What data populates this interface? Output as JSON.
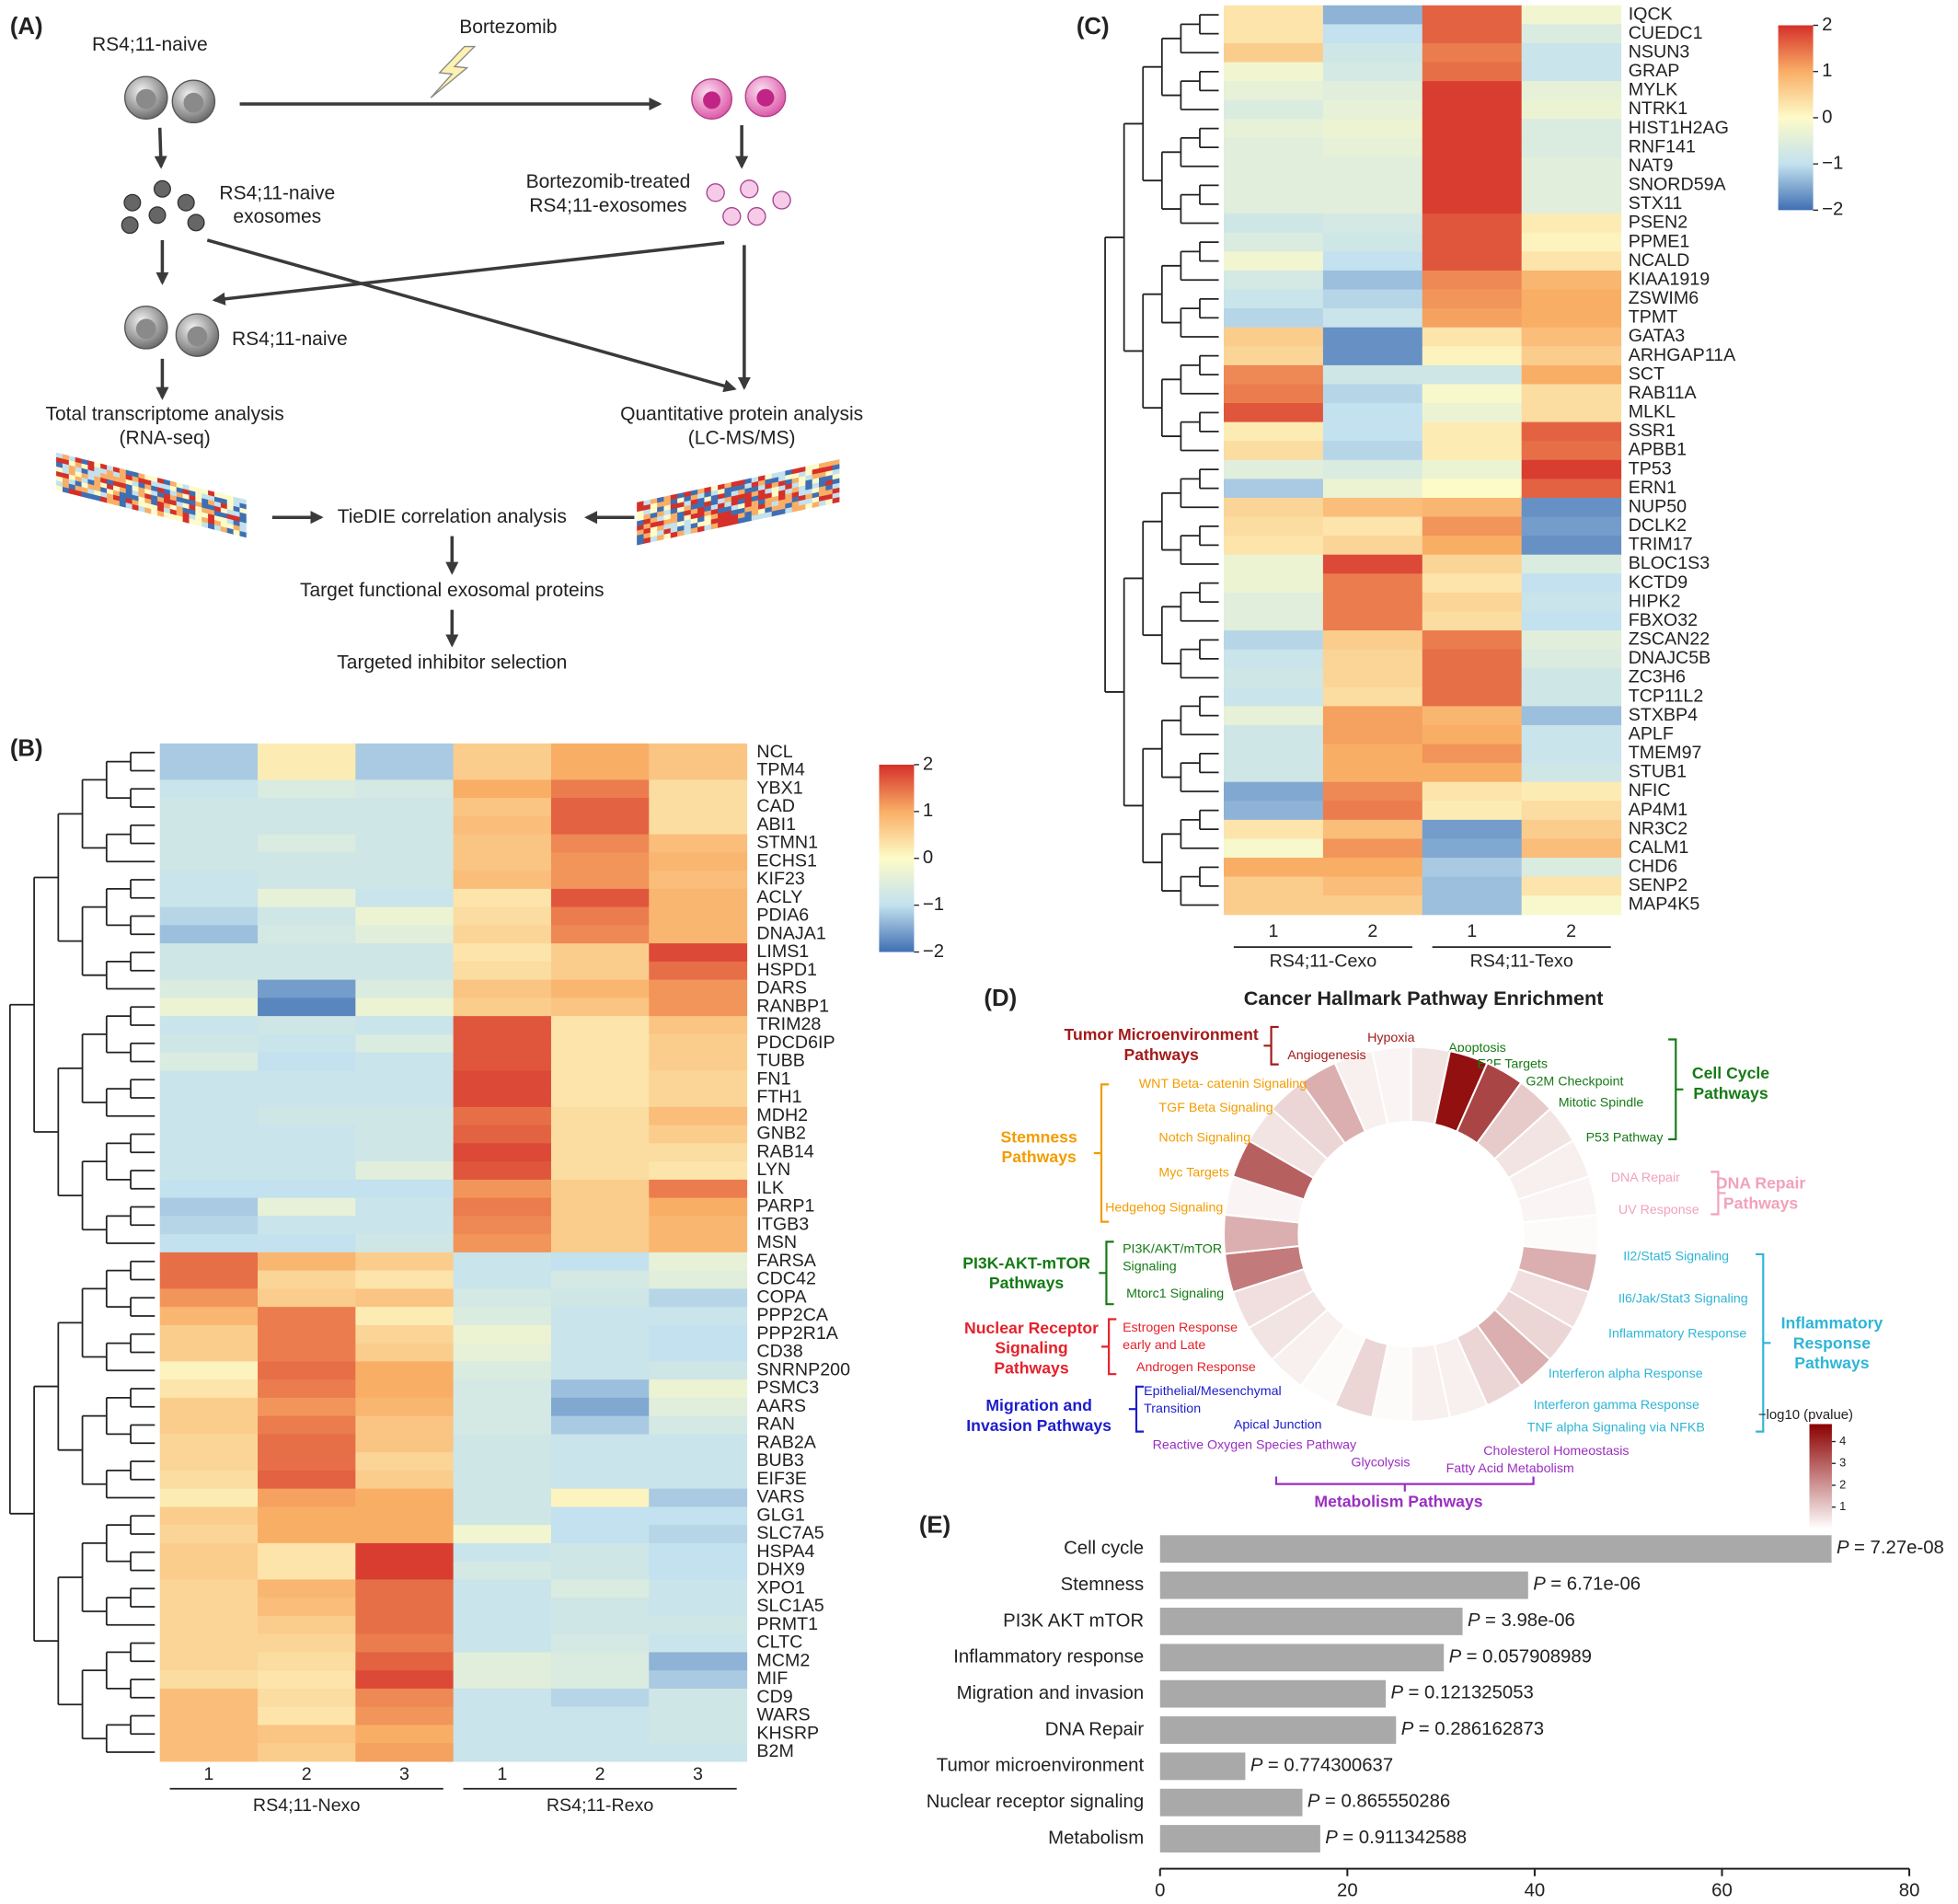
{
  "diagram": {
    "label": "(A)",
    "cells_top": "RS4;11-naive",
    "drug": "Bortezomib",
    "naive_exosomes": [
      "RS4;11-naive",
      "exosomes"
    ],
    "treated_exosomes": [
      "Bortezomib-treated",
      "RS4;11-exosomes"
    ],
    "cells_bottom": "RS4;11-naive",
    "rna": [
      "Total transcriptome analysis",
      "(RNA-seq)"
    ],
    "protein": [
      "Quantitative protein analysis",
      "(LC-MS/MS)"
    ],
    "tiedie": "TieDIE correlation analysis",
    "target": "Target functional exosomal proteins",
    "inhibitor": "Targeted inhibitor selection"
  },
  "chart_data": [
    {
      "type": "heatmap",
      "label": "(B)",
      "rows": [
        "NCL",
        "TPM4",
        "YBX1",
        "CAD",
        "ABI1",
        "STMN1",
        "ECHS1",
        "KIF23",
        "ACLY",
        "PDIA6",
        "DNAJA1",
        "LIMS1",
        "HSPD1",
        "DARS",
        "RANBP1",
        "TRIM28",
        "PDCD6IP",
        "TUBB",
        "FN1",
        "FTH1",
        "MDH2",
        "GNB2",
        "RAB14",
        "LYN",
        "ILK",
        "PARP1",
        "ITGB3",
        "MSN",
        "FARSA",
        "CDC42",
        "COPA",
        "PPP2CA",
        "PPP2R1A",
        "CD38",
        "SNRNP200",
        "PSMC3",
        "AARS",
        "RAN",
        "RAB2A",
        "BUB3",
        "EIF3E",
        "VARS",
        "GLG1",
        "SLC7A5",
        "HSPA4",
        "DHX9",
        "XPO1",
        "SLC1A5",
        "PRMT1",
        "CLTC",
        "MCM2",
        "MIF",
        "CD9",
        "WARS",
        "KHSRP",
        "B2M"
      ],
      "groups": [
        {
          "name": "RS4;11-Nexo",
          "columns": [
            "1",
            "2",
            "3"
          ]
        },
        {
          "name": "RS4;11-Rexo",
          "columns": [
            "1",
            "2",
            "3"
          ]
        }
      ],
      "values": [
        [
          -1.2,
          0.2,
          -1.2,
          0.6,
          1.0,
          0.7
        ],
        [
          -1.2,
          0.2,
          -1.2,
          0.6,
          1.0,
          0.7
        ],
        [
          -0.9,
          -0.6,
          -0.7,
          1.0,
          1.4,
          0.4
        ],
        [
          -0.8,
          -0.8,
          -0.8,
          0.7,
          1.6,
          0.4
        ],
        [
          -0.8,
          -0.8,
          -0.8,
          0.8,
          1.6,
          0.4
        ],
        [
          -0.8,
          -0.6,
          -0.8,
          0.7,
          1.3,
          0.8
        ],
        [
          -0.8,
          -0.8,
          -0.8,
          0.7,
          1.2,
          0.9
        ],
        [
          -0.9,
          -0.8,
          -0.8,
          0.8,
          1.2,
          0.8
        ],
        [
          -0.9,
          -0.4,
          -0.9,
          0.3,
          1.7,
          0.9
        ],
        [
          -1.1,
          -0.8,
          -0.3,
          0.4,
          1.4,
          0.9
        ],
        [
          -1.3,
          -0.7,
          -0.5,
          0.5,
          1.3,
          0.9
        ],
        [
          -0.8,
          -0.8,
          -0.8,
          0.3,
          0.6,
          1.8
        ],
        [
          -0.8,
          -0.8,
          -0.8,
          0.4,
          0.6,
          1.5
        ],
        [
          -0.6,
          -1.6,
          -0.6,
          0.7,
          0.9,
          1.2
        ],
        [
          -0.3,
          -1.8,
          -0.3,
          0.6,
          0.7,
          1.2
        ],
        [
          -0.9,
          -0.8,
          -0.9,
          1.7,
          0.3,
          0.7
        ],
        [
          -0.8,
          -0.9,
          -0.6,
          1.7,
          0.3,
          0.6
        ],
        [
          -0.6,
          -1.0,
          -0.9,
          1.7,
          0.3,
          0.6
        ],
        [
          -0.9,
          -0.9,
          -0.9,
          1.8,
          0.3,
          0.5
        ],
        [
          -0.9,
          -0.9,
          -0.9,
          1.8,
          0.3,
          0.5
        ],
        [
          -0.9,
          -0.8,
          -0.8,
          1.5,
          0.4,
          0.8
        ],
        [
          -0.9,
          -0.9,
          -0.8,
          1.6,
          0.4,
          0.6
        ],
        [
          -0.9,
          -0.9,
          -0.8,
          1.8,
          0.4,
          0.4
        ],
        [
          -0.9,
          -0.9,
          -0.5,
          1.7,
          0.4,
          0.3
        ],
        [
          -1.0,
          -1.0,
          -1.0,
          1.2,
          0.6,
          1.4
        ],
        [
          -1.2,
          -0.4,
          -0.9,
          1.4,
          0.6,
          1.0
        ],
        [
          -1.1,
          -0.9,
          -0.9,
          1.3,
          0.6,
          0.9
        ],
        [
          -1.0,
          -1.0,
          -0.8,
          1.2,
          0.6,
          0.9
        ],
        [
          1.5,
          0.9,
          0.6,
          -0.9,
          -1.0,
          -0.4
        ],
        [
          1.5,
          0.5,
          0.3,
          -0.9,
          -0.7,
          -0.5
        ],
        [
          1.2,
          0.6,
          0.7,
          -0.7,
          -0.8,
          -1.1
        ],
        [
          0.9,
          1.4,
          0.2,
          -0.6,
          -0.9,
          -0.9
        ],
        [
          0.6,
          1.4,
          0.5,
          -0.3,
          -0.9,
          -1.0
        ],
        [
          0.6,
          1.4,
          0.6,
          -0.4,
          -0.9,
          -1.0
        ],
        [
          0.1,
          1.5,
          1.0,
          -0.6,
          -0.9,
          -0.8
        ],
        [
          0.3,
          1.4,
          1.0,
          -0.7,
          -1.3,
          -0.3
        ],
        [
          0.6,
          1.2,
          0.9,
          -0.7,
          -1.5,
          -0.5
        ],
        [
          0.6,
          1.4,
          0.7,
          -0.7,
          -1.2,
          -0.7
        ],
        [
          0.5,
          1.5,
          0.7,
          -0.8,
          -0.9,
          -0.9
        ],
        [
          0.5,
          1.5,
          0.5,
          -0.8,
          -0.9,
          -0.9
        ],
        [
          0.4,
          1.6,
          0.6,
          -0.8,
          -0.9,
          -0.9
        ],
        [
          0.2,
          1.1,
          1.0,
          -0.8,
          0.1,
          -1.2
        ],
        [
          0.6,
          1.0,
          1.0,
          -0.8,
          -1.0,
          -1.0
        ],
        [
          0.5,
          1.0,
          1.0,
          -0.2,
          -1.0,
          -1.1
        ],
        [
          0.6,
          0.3,
          1.9,
          -0.9,
          -0.8,
          -1.0
        ],
        [
          0.6,
          0.3,
          1.9,
          -0.7,
          -0.8,
          -1.0
        ],
        [
          0.5,
          0.9,
          1.5,
          -0.9,
          -0.6,
          -0.9
        ],
        [
          0.5,
          0.8,
          1.5,
          -0.9,
          -0.8,
          -0.9
        ],
        [
          0.5,
          0.6,
          1.5,
          -0.9,
          -0.8,
          -0.8
        ],
        [
          0.5,
          0.5,
          1.4,
          -0.9,
          -0.7,
          -0.9
        ],
        [
          0.5,
          0.4,
          1.6,
          -0.5,
          -0.6,
          -1.4
        ],
        [
          0.4,
          0.3,
          1.8,
          -0.5,
          -0.6,
          -1.2
        ],
        [
          0.8,
          0.4,
          1.3,
          -0.9,
          -1.1,
          -0.8
        ],
        [
          0.8,
          0.3,
          1.2,
          -0.9,
          -0.9,
          -0.8
        ],
        [
          0.8,
          0.7,
          1.0,
          -0.9,
          -0.9,
          -0.8
        ],
        [
          0.8,
          0.6,
          1.1,
          -0.9,
          -0.9,
          -0.9
        ]
      ],
      "zlim": [
        -2,
        2
      ],
      "colormap": [
        "#3f6fb3",
        "#c3e1ee",
        "#fdfbc8",
        "#f9ae66",
        "#d5302a"
      ],
      "colorbar_ticks": [
        2,
        1,
        0,
        {
          "value": -1,
          "label": "−1"
        },
        {
          "value": -2,
          "label": "−2"
        }
      ]
    },
    {
      "type": "heatmap",
      "label": "(C)",
      "rows": [
        "IQCK",
        "CUEDC1",
        "NSUN3",
        "GRAP",
        "MYLK",
        "NTRK1",
        "HIST1H2AG",
        "RNF141",
        "NAT9",
        "SNORD59A",
        "STX11",
        "PSEN2",
        "PPME1",
        "NCALD",
        "KIAA1919",
        "ZSWIM6",
        "TPMT",
        "GATA3",
        "ARHGAP11A",
        "SCT",
        "RAB11A",
        "MLKL",
        "SSR1",
        "APBB1",
        "TP53",
        "ERN1",
        "NUP50",
        "DCLK2",
        "TRIM17",
        "BLOC1S3",
        "KCTD9",
        "HIPK2",
        "FBXO32",
        "ZSCAN22",
        "DNAJC5B",
        "ZC3H6",
        "TCP11L2",
        "STXBP4",
        "APLF",
        "TMEM97",
        "STUB1",
        "NFIC",
        "AP4M1",
        "NR3C2",
        "CALM1",
        "CHD6",
        "SENP2",
        "MAP4K5"
      ],
      "groups": [
        {
          "name": "RS4;11-Cexo",
          "columns": [
            "1",
            "2"
          ]
        },
        {
          "name": "RS4;11-Texo",
          "columns": [
            "1",
            "2"
          ]
        }
      ],
      "values": [
        [
          0.3,
          -1.4,
          1.6,
          -0.2
        ],
        [
          0.3,
          -1.0,
          1.6,
          -0.6
        ],
        [
          0.6,
          -0.8,
          1.4,
          -0.9
        ],
        [
          -0.2,
          -0.7,
          1.5,
          -0.9
        ],
        [
          -0.4,
          -0.5,
          1.9,
          -0.4
        ],
        [
          -0.6,
          -0.4,
          1.9,
          -0.3
        ],
        [
          -0.4,
          -0.3,
          1.9,
          -0.6
        ],
        [
          -0.5,
          -0.4,
          1.9,
          -0.6
        ],
        [
          -0.5,
          -0.5,
          1.9,
          -0.5
        ],
        [
          -0.5,
          -0.5,
          1.9,
          -0.5
        ],
        [
          -0.5,
          -0.5,
          1.9,
          -0.5
        ],
        [
          -0.8,
          -0.7,
          1.7,
          0.2
        ],
        [
          -0.6,
          -0.8,
          1.7,
          0.1
        ],
        [
          -0.2,
          -1.0,
          1.7,
          0.3
        ],
        [
          -0.7,
          -1.3,
          1.3,
          0.9
        ],
        [
          -0.9,
          -1.1,
          1.2,
          1.0
        ],
        [
          -1.1,
          -0.9,
          1.1,
          1.0
        ],
        [
          0.6,
          -1.7,
          0.3,
          0.8
        ],
        [
          0.5,
          -1.7,
          0.1,
          0.6
        ],
        [
          1.3,
          -0.8,
          -0.8,
          1.0
        ],
        [
          1.4,
          -1.1,
          -0.1,
          0.4
        ],
        [
          1.7,
          -1.0,
          -0.3,
          0.4
        ],
        [
          0.2,
          -1.0,
          0.2,
          1.6
        ],
        [
          0.4,
          -1.1,
          0.2,
          1.5
        ],
        [
          -0.5,
          -0.6,
          -0.3,
          1.9
        ],
        [
          -1.2,
          -0.3,
          0.0,
          1.6
        ],
        [
          0.5,
          0.8,
          0.9,
          -1.7
        ],
        [
          0.4,
          0.3,
          1.2,
          -1.6
        ],
        [
          0.3,
          0.5,
          1.0,
          -1.7
        ],
        [
          -0.3,
          1.8,
          0.5,
          -0.6
        ],
        [
          -0.3,
          1.4,
          0.3,
          -1.0
        ],
        [
          -0.5,
          1.4,
          0.5,
          -0.9
        ],
        [
          -0.5,
          1.4,
          0.4,
          -1.0
        ],
        [
          -1.1,
          0.6,
          1.4,
          -0.5
        ],
        [
          -0.9,
          0.5,
          1.5,
          -0.6
        ],
        [
          -0.8,
          0.5,
          1.5,
          -0.8
        ],
        [
          -0.9,
          0.4,
          1.5,
          -0.8
        ],
        [
          -0.4,
          1.1,
          0.9,
          -1.3
        ],
        [
          -0.8,
          1.1,
          1.0,
          -0.9
        ],
        [
          -0.8,
          1.0,
          1.2,
          -0.9
        ],
        [
          -0.8,
          1.0,
          1.0,
          -0.8
        ],
        [
          -1.5,
          1.3,
          0.3,
          0.2
        ],
        [
          -1.4,
          1.4,
          0.2,
          0.4
        ],
        [
          0.3,
          0.8,
          -1.6,
          0.6
        ],
        [
          -0.1,
          1.2,
          -1.5,
          0.8
        ],
        [
          1.0,
          1.0,
          -1.2,
          -0.6
        ],
        [
          0.6,
          0.8,
          -1.3,
          0.3
        ],
        [
          0.6,
          0.6,
          -1.3,
          -0.1
        ]
      ],
      "zlim": [
        -2,
        2
      ],
      "colormap": [
        "#3f6fb3",
        "#c3e1ee",
        "#fdfbc8",
        "#f9ae66",
        "#d5302a"
      ],
      "colorbar_ticks": [
        2,
        1,
        0,
        {
          "value": -1,
          "label": "−1"
        },
        {
          "value": -2,
          "label": "−2"
        }
      ]
    },
    {
      "type": "radial_bar",
      "label": "(D)",
      "title": "Cancer Hallmark Pathway Enrichment",
      "series": [
        {
          "name": [
            "Cell Cycle",
            "Pathways"
          ],
          "color": "#167a16",
          "categories": [
            [
              "Apoptosis"
            ],
            [
              "E2F Targets"
            ],
            [
              "G2M Checkpoint"
            ],
            [
              "Mitotic Spindle"
            ],
            [
              "P53 Pathway"
            ]
          ],
          "values": [
            0.5,
            4.5,
            3.5,
            1.0,
            0.5
          ]
        },
        {
          "name": [
            "DNA Repair",
            "Pathways"
          ],
          "color": "#f2a2ba",
          "categories": [
            [
              "DNA Repair"
            ],
            [
              "UV Response"
            ]
          ],
          "values": [
            0.3,
            0.2
          ]
        },
        {
          "name": [
            "Inflammatory",
            "Response",
            "Pathways"
          ],
          "color": "#2fb5d6",
          "categories": [
            [
              "Il2/Stat5 Signaling"
            ],
            [
              "Il6/Jak/Stat3 Signaling"
            ],
            [
              "Inflammatory Response"
            ],
            [
              "Interferon alpha Response"
            ],
            [
              "Interferon gamma Response"
            ],
            [
              "TNF alpha Signaling via NFKB"
            ]
          ],
          "values": [
            0.1,
            1.5,
            0.6,
            0.8,
            1.5,
            0.8
          ]
        },
        {
          "name": [
            "Metabolism Pathways"
          ],
          "color": "#9a2fc0",
          "categories": [
            [
              "Cholesterol Homeostasis"
            ],
            [
              "Fatty Acid Metabolism"
            ],
            [
              "Glycolysis"
            ],
            [
              "Reactive Oxygen Species Pathway"
            ]
          ],
          "values": [
            0.3,
            0.3,
            0.1,
            0.8
          ]
        },
        {
          "name": [
            "Migration and",
            "Invasion Pathways"
          ],
          "color": "#1c1ccc",
          "categories": [
            [
              "Apical Junction"
            ],
            [
              "Epithelial/Mesenchymal",
              "Transition"
            ]
          ],
          "values": [
            0.1,
            0.3
          ]
        },
        {
          "name": [
            "Nuclear Receptor",
            "Signaling",
            "Pathways"
          ],
          "color": "#e6202a",
          "categories": [
            [
              "Androgen Response"
            ],
            [
              "Estrogen Response",
              "early and Late"
            ]
          ],
          "values": [
            0.5,
            0.6
          ]
        },
        {
          "name": [
            "PI3K-AKT-mTOR",
            "Pathways"
          ],
          "color": "#147a14",
          "categories": [
            [
              "Mtorc1 Signaling"
            ],
            [
              "PI3K/AKT/mTOR",
              "Signaling"
            ]
          ],
          "values": [
            2.5,
            1.5
          ]
        },
        {
          "name": [
            "Stemness",
            "Pathways"
          ],
          "color": "#f39c00",
          "categories": [
            [
              "Hedgehog Signaling"
            ],
            [
              "Myc Targets"
            ],
            [
              "Notch Signaling"
            ],
            [
              "TGF Beta Signaling"
            ],
            [
              "WNT Beta- catenin Signaling"
            ]
          ],
          "values": [
            0.2,
            3.0,
            0.5,
            0.8,
            1.5
          ]
        },
        {
          "name": [
            "Tumor Microenvironment",
            "Pathways"
          ],
          "color": "#a31a1a",
          "categories": [
            [
              "Angiogenesis"
            ],
            [
              "Hypoxia"
            ]
          ],
          "values": [
            0.3,
            0.2
          ]
        }
      ],
      "colorbar": {
        "title": "−log10 (pvalue)",
        "colors": [
          "#ffffff",
          "#8b0000"
        ],
        "lim": [
          0,
          4.8
        ],
        "ticks": [
          1,
          2,
          3,
          4
        ]
      }
    },
    {
      "type": "bar",
      "label": "(E)",
      "orientation": "horizontal",
      "categories": [
        "Cell cycle",
        "Stemness",
        "PI3K AKT mTOR",
        "Inflammatory response",
        "Migration and invasion",
        "DNA Repair",
        "Tumor microenvironment",
        "Nuclear receptor signaling",
        "Metabolism"
      ],
      "values": [
        71.7,
        39.3,
        32.3,
        30.3,
        24.1,
        25.2,
        9.1,
        15.2,
        17.1
      ],
      "p_symbol": "P",
      "annotations": [
        "= 7.27e-08",
        "= 6.71e-06",
        "= 3.98e-06",
        "= 0.057908989",
        "= 0.121325053",
        "= 0.286162873",
        "= 0.774300637",
        "= 0.865550286",
        "= 0.911342588"
      ],
      "color": "#a9a9a9",
      "xlim": [
        0,
        80
      ],
      "xticks": [
        0,
        20,
        40,
        60,
        80
      ]
    }
  ]
}
